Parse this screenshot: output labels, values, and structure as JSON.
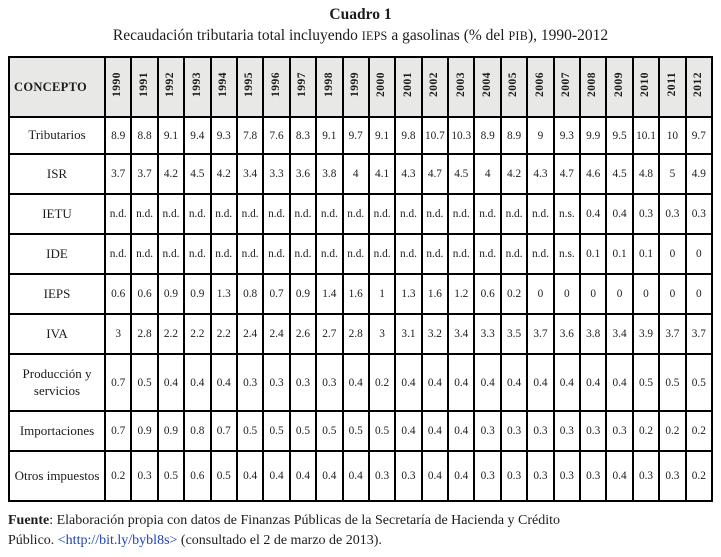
{
  "title": "Cuadro 1",
  "subtitle": {
    "part1": "Recaudación tributaria total incluyendo ",
    "ieps": "IEPS",
    "part2": " a gasolinas (% del ",
    "pib": "PIB",
    "part3": "), 1990-2012"
  },
  "table": {
    "concept_header": "CONCEPTO",
    "years": [
      "1990",
      "1991",
      "1992",
      "1993",
      "1994",
      "1995",
      "1996",
      "1997",
      "1998",
      "1999",
      "2000",
      "2001",
      "2002",
      "2003",
      "2004",
      "2005",
      "2006",
      "2007",
      "2008",
      "2009",
      "2010",
      "2011",
      "2012"
    ],
    "rows": [
      {
        "label": "Tributarios",
        "values": [
          "8.9",
          "8.8",
          "9.1",
          "9.4",
          "9.3",
          "7.8",
          "7.6",
          "8.3",
          "9.1",
          "9.7",
          "9.1",
          "9.8",
          "10.7",
          "10.3",
          "8.9",
          "8.9",
          "9",
          "9.3",
          "9.9",
          "9.5",
          "10.1",
          "10",
          "9.7"
        ]
      },
      {
        "label": "ISR",
        "values": [
          "3.7",
          "3.7",
          "4.2",
          "4.5",
          "4.2",
          "3.4",
          "3.3",
          "3.6",
          "3.8",
          "4",
          "4.1",
          "4.3",
          "4.7",
          "4.5",
          "4",
          "4.2",
          "4.3",
          "4.7",
          "4.6",
          "4.5",
          "4.8",
          "5",
          "4.9"
        ]
      },
      {
        "label": "IETU",
        "values": [
          "n.d.",
          "n.d.",
          "n.d.",
          "n.d.",
          "n.d.",
          "n.d.",
          "n.d.",
          "n.d.",
          "n.d.",
          "n.d.",
          "n.d.",
          "n.d.",
          "n.d.",
          "n.d.",
          "n.d.",
          "n.d.",
          "n.d.",
          "n.s.",
          "0.4",
          "0.4",
          "0.3",
          "0.3",
          "0.3"
        ]
      },
      {
        "label": "IDE",
        "values": [
          "n.d.",
          "n.d.",
          "n.d.",
          "n.d.",
          "n.d.",
          "n.d.",
          "n.d.",
          "n.d.",
          "n.d.",
          "n.d.",
          "n.d.",
          "n.d.",
          "n.d.",
          "n.d.",
          "n.d.",
          "n.d.",
          "n.d.",
          "n.s.",
          "0.1",
          "0.1",
          "0.1",
          "0",
          "0"
        ]
      },
      {
        "label": "IEPS",
        "values": [
          "0.6",
          "0.6",
          "0.9",
          "0.9",
          "1.3",
          "0.8",
          "0.7",
          "0.9",
          "1.4",
          "1.6",
          "1",
          "1.3",
          "1.6",
          "1.2",
          "0.6",
          "0.2",
          "0",
          "0",
          "0",
          "0",
          "0",
          "0",
          "0"
        ]
      },
      {
        "label": "IVA",
        "values": [
          "3",
          "2.8",
          "2.2",
          "2.2",
          "2.2",
          "2.4",
          "2.4",
          "2.6",
          "2.7",
          "2.8",
          "3",
          "3.1",
          "3.2",
          "3.4",
          "3.3",
          "3.5",
          "3.7",
          "3.6",
          "3.8",
          "3.4",
          "3.9",
          "3.7",
          "3.7"
        ]
      },
      {
        "label": "Producción y servicios",
        "values": [
          "0.7",
          "0.5",
          "0.4",
          "0.4",
          "0.4",
          "0.3",
          "0.3",
          "0.3",
          "0.3",
          "0.4",
          "0.2",
          "0.4",
          "0.4",
          "0.4",
          "0.4",
          "0.4",
          "0.4",
          "0.4",
          "0.4",
          "0.4",
          "0.5",
          "0.5",
          "0.5"
        ]
      },
      {
        "label": "Importaciones",
        "values": [
          "0.7",
          "0.9",
          "0.9",
          "0.8",
          "0.7",
          "0.5",
          "0.5",
          "0.5",
          "0.5",
          "0.5",
          "0.5",
          "0.4",
          "0.4",
          "0.4",
          "0.3",
          "0.3",
          "0.3",
          "0.3",
          "0.3",
          "0.3",
          "0.2",
          "0.2",
          "0.2"
        ]
      },
      {
        "label": "Otros impuestos",
        "values": [
          "0.2",
          "0.3",
          "0.5",
          "0.6",
          "0.5",
          "0.4",
          "0.4",
          "0.4",
          "0.4",
          "0.4",
          "0.3",
          "0.3",
          "0.4",
          "0.4",
          "0.3",
          "0.3",
          "0.3",
          "0.3",
          "0.3",
          "0.4",
          "0.3",
          "0.3",
          "0.2"
        ]
      }
    ]
  },
  "footer": {
    "fuente_label": "Fuente",
    "line1_rest": ": Elaboración propia con datos de Finanzas Públicas de la Secretaría de Hacienda y Crédito",
    "line2_pre": "Público. ",
    "link": "<http://bit.ly/bybl8s>",
    "line2_post": " (consultado el 2 de marzo de 2013)."
  }
}
